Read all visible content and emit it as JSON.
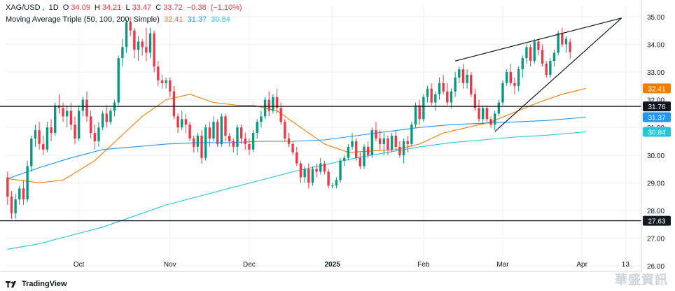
{
  "legend": {
    "symbol": "XAG/USD",
    "interval": "1D",
    "open_label": "O",
    "open": "34.09",
    "high_label": "H",
    "high": "34.21",
    "low_label": "L",
    "low": "33.47",
    "close_label": "C",
    "close": "33.72",
    "change": "−0.38",
    "change_pct": "(−1.10%)",
    "ma_title": "Moving Average Triple (50, 100, 200, Simple)",
    "ma50": "32.41",
    "ma100": "31.37",
    "ma200": "30.84"
  },
  "branding": {
    "name": "TradingView",
    "watermark": "華盛資訊"
  },
  "colors": {
    "up": "#089981",
    "down": "#f23645",
    "ma50": "#f57c00",
    "ma100": "#2196f3",
    "ma200": "#26c6da",
    "hline": "#131722",
    "trendline": "#131722"
  },
  "chart_data": {
    "type": "candlestick",
    "title": "XAG/USD, 1D",
    "y_ticks": [
      "26.00",
      "27.00",
      "28.00",
      "29.00",
      "30.00",
      "31.00",
      "32.00",
      "33.00",
      "34.00",
      "35.00"
    ],
    "ylim": [
      25.8,
      35.4
    ],
    "x_ticks": [
      {
        "i": 18,
        "label": "Oct"
      },
      {
        "i": 41,
        "label": "Nov"
      },
      {
        "i": 61,
        "label": "Dec"
      },
      {
        "i": 82,
        "label": "2025"
      },
      {
        "i": 105,
        "label": "Feb"
      },
      {
        "i": 125,
        "label": "Mar"
      },
      {
        "i": 145,
        "label": "Apr"
      },
      {
        "i": 156,
        "label": "13"
      }
    ],
    "price_badges": [
      {
        "value": 32.41,
        "label": "32.41",
        "color": "#f57c00"
      },
      {
        "value": 31.76,
        "label": "31.76",
        "color": "#131722"
      },
      {
        "value": 31.37,
        "label": "31.37",
        "color": "#2196f3"
      },
      {
        "value": 30.84,
        "label": "30.84",
        "color": "#26c6da"
      },
      {
        "value": 27.63,
        "label": "27.63",
        "color": "#131722"
      }
    ],
    "horizontal_lines": [
      31.76,
      27.63
    ],
    "trendlines": [
      {
        "i1": 113,
        "v1": 33.4,
        "i2": 155,
        "v2": 34.95
      },
      {
        "i1": 123,
        "v1": 30.85,
        "i2": 155,
        "v2": 34.95
      }
    ],
    "x_range": [
      -0.5,
      160
    ],
    "series_ohlc": [
      [
        29.2,
        29.4,
        28.2,
        28.5
      ],
      [
        28.5,
        28.7,
        27.7,
        27.9
      ],
      [
        27.9,
        28.6,
        27.7,
        28.4
      ],
      [
        28.4,
        28.9,
        28.2,
        28.8
      ],
      [
        28.8,
        29.1,
        28.2,
        28.4
      ],
      [
        28.4,
        29.8,
        28.3,
        29.6
      ],
      [
        29.6,
        30.7,
        29.4,
        30.6
      ],
      [
        30.6,
        31.1,
        30.3,
        30.9
      ],
      [
        30.9,
        31.2,
        30.2,
        30.4
      ],
      [
        30.4,
        30.7,
        30.0,
        30.2
      ],
      [
        30.2,
        31.2,
        30.1,
        31.0
      ],
      [
        31.0,
        31.3,
        30.5,
        30.8
      ],
      [
        30.8,
        31.9,
        30.7,
        31.8
      ],
      [
        31.8,
        32.2,
        31.5,
        31.7
      ],
      [
        31.7,
        31.9,
        31.2,
        31.4
      ],
      [
        31.4,
        31.8,
        31.0,
        31.6
      ],
      [
        31.6,
        31.9,
        30.9,
        31.1
      ],
      [
        31.1,
        31.4,
        30.4,
        30.6
      ],
      [
        30.6,
        31.8,
        30.5,
        31.6
      ],
      [
        31.6,
        32.1,
        31.4,
        32.0
      ],
      [
        32.0,
        32.3,
        31.2,
        31.4
      ],
      [
        31.4,
        31.6,
        30.6,
        30.8
      ],
      [
        30.8,
        31.1,
        30.2,
        30.5
      ],
      [
        30.5,
        31.2,
        30.3,
        31.0
      ],
      [
        31.0,
        31.6,
        30.9,
        31.5
      ],
      [
        31.5,
        31.8,
        31.0,
        31.2
      ],
      [
        31.2,
        31.7,
        31.1,
        31.6
      ],
      [
        31.6,
        32.0,
        31.4,
        31.9
      ],
      [
        31.9,
        33.6,
        31.8,
        33.5
      ],
      [
        33.5,
        34.2,
        33.2,
        33.9
      ],
      [
        33.9,
        34.9,
        33.7,
        34.8
      ],
      [
        34.8,
        35.0,
        34.3,
        34.5
      ],
      [
        34.5,
        34.6,
        33.5,
        33.8
      ],
      [
        33.8,
        34.3,
        33.4,
        34.1
      ],
      [
        34.1,
        34.2,
        33.6,
        33.9
      ],
      [
        33.9,
        34.6,
        33.4,
        33.7
      ],
      [
        33.7,
        34.6,
        33.5,
        34.4
      ],
      [
        34.4,
        34.5,
        33.0,
        33.2
      ],
      [
        33.2,
        33.4,
        32.5,
        32.7
      ],
      [
        32.7,
        32.9,
        32.4,
        32.6
      ],
      [
        32.6,
        32.8,
        32.4,
        32.7
      ],
      [
        32.7,
        32.8,
        32.1,
        32.3
      ],
      [
        32.3,
        32.5,
        31.3,
        31.4
      ],
      [
        31.4,
        31.5,
        30.8,
        31.0
      ],
      [
        31.0,
        31.6,
        30.9,
        31.3
      ],
      [
        31.3,
        31.5,
        30.8,
        31.1
      ],
      [
        31.1,
        31.2,
        30.5,
        30.6
      ],
      [
        30.6,
        30.7,
        30.1,
        30.3
      ],
      [
        30.3,
        30.8,
        30.1,
        30.7
      ],
      [
        30.7,
        30.9,
        29.7,
        29.9
      ],
      [
        29.9,
        31.1,
        29.8,
        31.0
      ],
      [
        31.0,
        31.2,
        30.3,
        30.6
      ],
      [
        30.6,
        31.4,
        30.5,
        31.2
      ],
      [
        31.2,
        31.3,
        30.3,
        30.4
      ],
      [
        30.4,
        31.5,
        30.3,
        31.4
      ],
      [
        31.4,
        31.5,
        30.5,
        30.7
      ],
      [
        30.7,
        30.8,
        30.3,
        30.5
      ],
      [
        30.5,
        30.6,
        30.1,
        30.3
      ],
      [
        30.3,
        31.1,
        30.0,
        31.0
      ],
      [
        31.0,
        31.1,
        30.4,
        30.6
      ],
      [
        30.6,
        30.8,
        30.2,
        30.4
      ],
      [
        30.4,
        30.6,
        30.0,
        30.2
      ],
      [
        30.2,
        30.9,
        30.1,
        30.8
      ],
      [
        30.8,
        31.3,
        30.6,
        31.2
      ],
      [
        31.2,
        31.6,
        31.0,
        31.4
      ],
      [
        31.4,
        32.1,
        31.3,
        32.0
      ],
      [
        32.0,
        32.3,
        31.4,
        31.6
      ],
      [
        31.6,
        32.2,
        31.5,
        32.1
      ],
      [
        32.1,
        32.4,
        31.5,
        31.7
      ],
      [
        31.7,
        31.9,
        31.1,
        31.2
      ],
      [
        31.2,
        31.3,
        30.5,
        30.6
      ],
      [
        30.6,
        30.8,
        30.3,
        30.4
      ],
      [
        30.4,
        30.5,
        30.0,
        30.1
      ],
      [
        30.1,
        30.3,
        29.6,
        29.7
      ],
      [
        29.7,
        29.8,
        29.0,
        29.2
      ],
      [
        29.2,
        29.6,
        29.0,
        29.5
      ],
      [
        29.5,
        29.7,
        28.8,
        29.0
      ],
      [
        29.0,
        29.6,
        28.9,
        29.5
      ],
      [
        29.5,
        29.7,
        29.2,
        29.4
      ],
      [
        29.4,
        29.9,
        29.3,
        29.7
      ],
      [
        29.7,
        29.8,
        29.3,
        29.4
      ],
      [
        29.4,
        29.5,
        28.8,
        28.9
      ],
      [
        28.9,
        29.0,
        28.8,
        28.9
      ],
      [
        28.9,
        29.2,
        28.8,
        29.1
      ],
      [
        29.1,
        29.9,
        29.0,
        29.8
      ],
      [
        29.8,
        30.0,
        29.6,
        29.9
      ],
      [
        29.9,
        30.4,
        29.8,
        30.3
      ],
      [
        30.3,
        30.8,
        30.2,
        30.5
      ],
      [
        30.5,
        30.6,
        29.8,
        29.9
      ],
      [
        29.9,
        30.1,
        29.5,
        29.6
      ],
      [
        29.6,
        30.4,
        29.5,
        30.3
      ],
      [
        30.3,
        30.5,
        29.9,
        30.0
      ],
      [
        30.0,
        31.0,
        29.9,
        30.9
      ],
      [
        30.9,
        31.2,
        30.5,
        30.6
      ],
      [
        30.6,
        30.9,
        30.2,
        30.4
      ],
      [
        30.4,
        30.8,
        30.0,
        30.6
      ],
      [
        30.6,
        30.7,
        30.0,
        30.2
      ],
      [
        30.2,
        30.8,
        30.1,
        30.7
      ],
      [
        30.7,
        30.9,
        30.2,
        30.3
      ],
      [
        30.3,
        30.5,
        29.9,
        30.0
      ],
      [
        30.0,
        30.6,
        29.7,
        30.5
      ],
      [
        30.5,
        30.7,
        30.1,
        30.4
      ],
      [
        30.4,
        31.2,
        30.3,
        31.1
      ],
      [
        31.1,
        31.9,
        31.0,
        31.8
      ],
      [
        31.8,
        32.0,
        31.1,
        31.3
      ],
      [
        31.3,
        32.2,
        31.2,
        32.1
      ],
      [
        32.1,
        32.5,
        31.9,
        32.4
      ],
      [
        32.4,
        32.6,
        31.8,
        31.9
      ],
      [
        31.9,
        32.3,
        31.6,
        32.2
      ],
      [
        32.2,
        32.8,
        32.0,
        32.6
      ],
      [
        32.6,
        32.9,
        32.2,
        32.3
      ],
      [
        32.3,
        32.6,
        31.8,
        31.9
      ],
      [
        31.9,
        32.4,
        31.7,
        32.3
      ],
      [
        32.3,
        33.0,
        32.1,
        32.8
      ],
      [
        32.8,
        33.2,
        32.6,
        33.1
      ],
      [
        33.1,
        33.3,
        32.4,
        32.6
      ],
      [
        32.6,
        33.1,
        32.4,
        32.9
      ],
      [
        32.9,
        33.0,
        32.1,
        32.2
      ],
      [
        32.2,
        32.4,
        31.6,
        31.7
      ],
      [
        31.7,
        32.0,
        31.2,
        31.3
      ],
      [
        31.3,
        31.8,
        31.1,
        31.7
      ],
      [
        31.7,
        31.8,
        31.2,
        31.3
      ],
      [
        31.3,
        31.4,
        31.0,
        31.1
      ],
      [
        31.1,
        31.6,
        30.9,
        31.5
      ],
      [
        31.5,
        32.0,
        31.4,
        31.9
      ],
      [
        31.9,
        32.7,
        31.8,
        32.6
      ],
      [
        32.6,
        33.1,
        32.5,
        33.0
      ],
      [
        33.0,
        33.3,
        32.5,
        32.6
      ],
      [
        32.6,
        32.8,
        32.2,
        32.5
      ],
      [
        32.5,
        33.2,
        32.3,
        33.1
      ],
      [
        33.1,
        33.6,
        32.8,
        33.5
      ],
      [
        33.5,
        34.0,
        33.3,
        33.9
      ],
      [
        33.9,
        34.0,
        33.2,
        33.4
      ],
      [
        33.4,
        34.2,
        33.3,
        34.1
      ],
      [
        34.1,
        34.2,
        33.6,
        33.8
      ],
      [
        33.8,
        34.0,
        33.2,
        33.3
      ],
      [
        33.3,
        33.4,
        32.8,
        32.9
      ],
      [
        32.9,
        33.5,
        32.8,
        33.4
      ],
      [
        33.4,
        33.8,
        33.2,
        33.7
      ],
      [
        33.7,
        34.5,
        33.6,
        34.4
      ],
      [
        34.4,
        34.6,
        33.9,
        34.0
      ],
      [
        34.0,
        34.3,
        33.7,
        34.2
      ],
      [
        34.09,
        34.21,
        33.47,
        33.72
      ]
    ],
    "series": [
      {
        "name": "50",
        "color": "#f57c00",
        "points": [
          [
            0,
            29.15
          ],
          [
            8,
            29.0
          ],
          [
            14,
            29.1
          ],
          [
            22,
            29.8
          ],
          [
            28,
            30.6
          ],
          [
            34,
            31.4
          ],
          [
            40,
            32.0
          ],
          [
            46,
            32.2
          ],
          [
            52,
            31.9
          ],
          [
            58,
            31.8
          ],
          [
            62,
            31.8
          ],
          [
            68,
            31.6
          ],
          [
            74,
            31.0
          ],
          [
            80,
            30.4
          ],
          [
            86,
            30.1
          ],
          [
            92,
            30.15
          ],
          [
            98,
            30.2
          ],
          [
            104,
            30.4
          ],
          [
            110,
            30.8
          ],
          [
            116,
            31.0
          ],
          [
            122,
            31.2
          ],
          [
            128,
            31.55
          ],
          [
            134,
            31.9
          ],
          [
            140,
            32.2
          ],
          [
            146,
            32.41
          ]
        ]
      },
      {
        "name": "100",
        "color": "#2196f3",
        "points": [
          [
            0,
            29.15
          ],
          [
            8,
            29.55
          ],
          [
            16,
            29.9
          ],
          [
            24,
            30.2
          ],
          [
            32,
            30.3
          ],
          [
            40,
            30.4
          ],
          [
            48,
            30.45
          ],
          [
            56,
            30.45
          ],
          [
            64,
            30.5
          ],
          [
            72,
            30.5
          ],
          [
            80,
            30.55
          ],
          [
            88,
            30.7
          ],
          [
            96,
            30.85
          ],
          [
            104,
            31.0
          ],
          [
            112,
            31.1
          ],
          [
            120,
            31.15
          ],
          [
            128,
            31.2
          ],
          [
            136,
            31.25
          ],
          [
            146,
            31.37
          ]
        ]
      },
      {
        "name": "200",
        "color": "#26c6da",
        "points": [
          [
            0,
            26.6
          ],
          [
            8,
            26.8
          ],
          [
            16,
            27.1
          ],
          [
            24,
            27.4
          ],
          [
            32,
            27.8
          ],
          [
            40,
            28.2
          ],
          [
            48,
            28.5
          ],
          [
            56,
            28.8
          ],
          [
            64,
            29.1
          ],
          [
            72,
            29.4
          ],
          [
            80,
            29.65
          ],
          [
            88,
            29.9
          ],
          [
            96,
            30.1
          ],
          [
            104,
            30.3
          ],
          [
            112,
            30.45
          ],
          [
            120,
            30.55
          ],
          [
            128,
            30.65
          ],
          [
            136,
            30.72
          ],
          [
            146,
            30.84
          ]
        ]
      }
    ]
  }
}
